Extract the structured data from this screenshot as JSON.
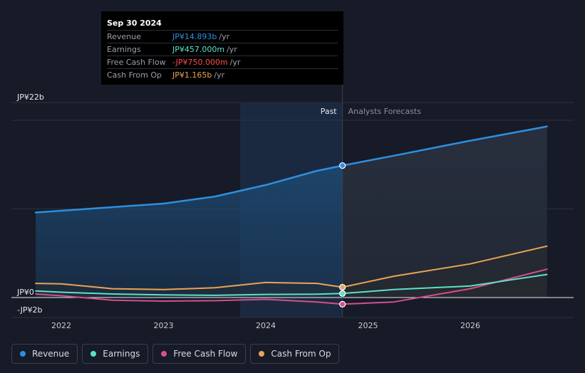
{
  "chart_data": {
    "type": "area",
    "y_axis_labels": [
      "JP¥22b",
      "JP¥0",
      "-JP¥2b"
    ],
    "x_tick_labels": [
      "2022",
      "2023",
      "2024",
      "2025",
      "2026"
    ],
    "ylim": [
      -2,
      22
    ],
    "divider_labels": {
      "past": "Past",
      "forecast": "Analysts Forecasts"
    },
    "series": [
      {
        "name": "Revenue",
        "color": "#2e8fe0",
        "points": [
          [
            2021.75,
            9.6
          ],
          [
            2022.0,
            9.8
          ],
          [
            2022.5,
            10.2
          ],
          [
            2023.0,
            10.6
          ],
          [
            2023.5,
            11.4
          ],
          [
            2024.0,
            12.7
          ],
          [
            2024.5,
            14.3
          ],
          [
            2024.75,
            14.893
          ],
          [
            2025.25,
            16.0
          ],
          [
            2026.0,
            17.7
          ],
          [
            2026.75,
            19.3
          ]
        ]
      },
      {
        "name": "Earnings",
        "color": "#5ee0c8",
        "points": [
          [
            2021.75,
            0.75
          ],
          [
            2022.0,
            0.6
          ],
          [
            2022.5,
            0.4
          ],
          [
            2023.0,
            0.3
          ],
          [
            2023.5,
            0.25
          ],
          [
            2024.0,
            0.35
          ],
          [
            2024.5,
            0.38
          ],
          [
            2024.75,
            0.457
          ],
          [
            2025.25,
            0.9
          ],
          [
            2026.0,
            1.3
          ],
          [
            2026.75,
            2.6
          ]
        ]
      },
      {
        "name": "Free Cash Flow",
        "color": "#d64f8e",
        "points": [
          [
            2021.75,
            0.4
          ],
          [
            2022.0,
            0.2
          ],
          [
            2022.5,
            -0.3
          ],
          [
            2023.0,
            -0.4
          ],
          [
            2023.5,
            -0.35
          ],
          [
            2024.0,
            -0.2
          ],
          [
            2024.5,
            -0.5
          ],
          [
            2024.75,
            -0.75
          ],
          [
            2025.25,
            -0.5
          ],
          [
            2026.0,
            1.0
          ],
          [
            2026.75,
            3.2
          ]
        ]
      },
      {
        "name": "Cash From Op",
        "color": "#e9a456",
        "points": [
          [
            2021.75,
            1.6
          ],
          [
            2022.0,
            1.55
          ],
          [
            2022.5,
            1.0
          ],
          [
            2023.0,
            0.9
          ],
          [
            2023.5,
            1.1
          ],
          [
            2024.0,
            1.7
          ],
          [
            2024.5,
            1.6
          ],
          [
            2024.75,
            1.165
          ],
          [
            2025.25,
            2.4
          ],
          [
            2026.0,
            3.8
          ],
          [
            2026.75,
            5.8
          ]
        ]
      }
    ],
    "past_end_x": 2024.75,
    "highlight_start_x": 2023.75
  },
  "tooltip": {
    "date": "Sep 30 2024",
    "rows": [
      {
        "label": "Revenue",
        "value": "JP¥14.893b",
        "unit": "/yr",
        "color": "#2e8fe0"
      },
      {
        "label": "Earnings",
        "value": "JP¥457.000m",
        "unit": "/yr",
        "color": "#5ee0c8"
      },
      {
        "label": "Free Cash Flow",
        "value": "-JP¥750.000m",
        "unit": "/yr",
        "color": "#ff4c4c"
      },
      {
        "label": "Cash From Op",
        "value": "JP¥1.165b",
        "unit": "/yr",
        "color": "#e9a456"
      }
    ]
  },
  "legend": [
    {
      "label": "Revenue",
      "color": "#2e8fe0"
    },
    {
      "label": "Earnings",
      "color": "#5ee0c8"
    },
    {
      "label": "Free Cash Flow",
      "color": "#d64f8e"
    },
    {
      "label": "Cash From Op",
      "color": "#e9a456"
    }
  ]
}
